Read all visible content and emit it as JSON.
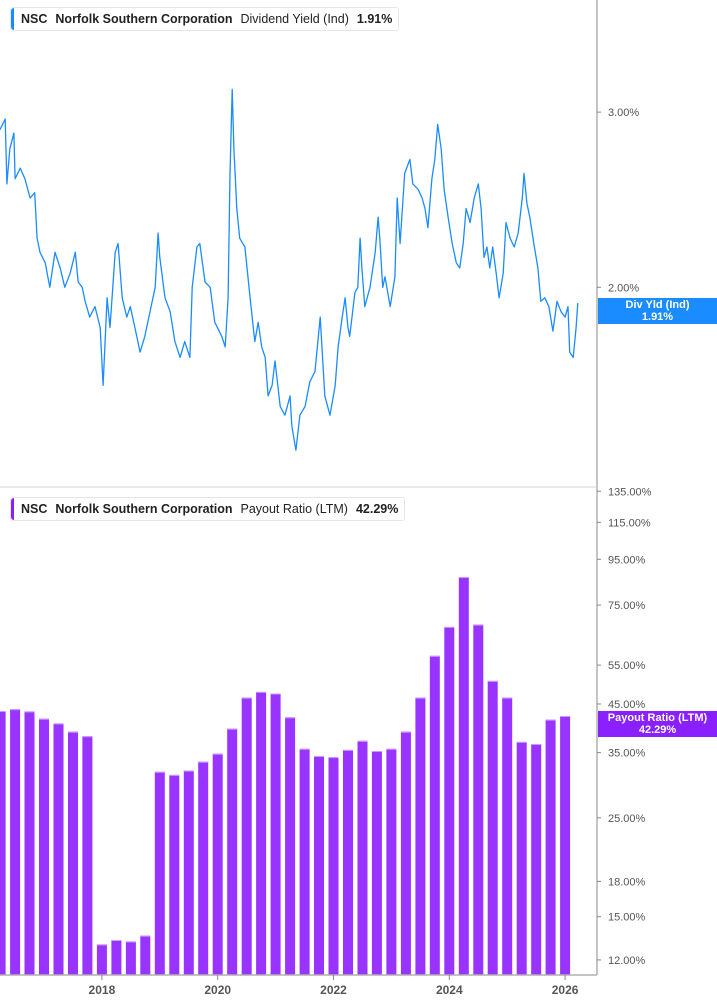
{
  "top_legend": {
    "ticker": "NSC",
    "company": "Norfolk Southern Corporation",
    "metric": "Dividend Yield (Ind)",
    "value": "1.91%"
  },
  "bottom_legend": {
    "ticker": "NSC",
    "company": "Norfolk Southern Corporation",
    "metric": "Payout Ratio (LTM)",
    "value": "42.29%"
  },
  "top_tag": {
    "label": "Div Yld (Ind)",
    "value": "1.91%"
  },
  "bottom_tag": {
    "label": "Payout Ratio (LTM)",
    "value": "42.29%"
  },
  "colors": {
    "yield_line": "#1a8cff",
    "payout_bar": "#9933ff",
    "payout_tag": "#8a1fff",
    "yield_tag": "#1a8cff",
    "axis": "#b0b0b0"
  },
  "chart_data": [
    {
      "type": "line",
      "series": [
        {
          "name": "Dividend Yield (Ind)",
          "x_unit": "year",
          "points": [
            [
              2016.24,
              2.9
            ],
            [
              2016.33,
              2.96
            ],
            [
              2016.36,
              2.59
            ],
            [
              2016.41,
              2.79
            ],
            [
              2016.48,
              2.88
            ],
            [
              2016.5,
              2.62
            ],
            [
              2016.59,
              2.68
            ],
            [
              2016.67,
              2.62
            ],
            [
              2016.76,
              2.51
            ],
            [
              2016.84,
              2.54
            ],
            [
              2016.88,
              2.28
            ],
            [
              2016.93,
              2.2
            ],
            [
              2017.02,
              2.14
            ],
            [
              2017.1,
              2.0
            ],
            [
              2017.19,
              2.2
            ],
            [
              2017.28,
              2.11
            ],
            [
              2017.36,
              2.0
            ],
            [
              2017.45,
              2.08
            ],
            [
              2017.54,
              2.2
            ],
            [
              2017.59,
              2.03
            ],
            [
              2017.66,
              2.0
            ],
            [
              2017.71,
              1.92
            ],
            [
              2017.79,
              1.83
            ],
            [
              2017.88,
              1.89
            ],
            [
              2017.97,
              1.77
            ],
            [
              2018.02,
              1.44
            ],
            [
              2018.09,
              1.94
            ],
            [
              2018.14,
              1.77
            ],
            [
              2018.23,
              2.2
            ],
            [
              2018.28,
              2.25
            ],
            [
              2018.35,
              1.94
            ],
            [
              2018.43,
              1.83
            ],
            [
              2018.49,
              1.89
            ],
            [
              2018.57,
              1.77
            ],
            [
              2018.66,
              1.63
            ],
            [
              2018.74,
              1.72
            ],
            [
              2018.83,
              1.86
            ],
            [
              2018.92,
              2.0
            ],
            [
              2018.97,
              2.31
            ],
            [
              2019.0,
              2.17
            ],
            [
              2019.09,
              1.94
            ],
            [
              2019.18,
              1.86
            ],
            [
              2019.26,
              1.69
            ],
            [
              2019.35,
              1.6
            ],
            [
              2019.43,
              1.69
            ],
            [
              2019.52,
              1.6
            ],
            [
              2019.56,
              2.0
            ],
            [
              2019.64,
              2.23
            ],
            [
              2019.69,
              2.25
            ],
            [
              2019.78,
              2.03
            ],
            [
              2019.87,
              2.0
            ],
            [
              2019.95,
              1.8
            ],
            [
              2020.07,
              1.72
            ],
            [
              2020.13,
              1.66
            ],
            [
              2020.18,
              1.94
            ],
            [
              2020.21,
              2.62
            ],
            [
              2020.25,
              3.13
            ],
            [
              2020.28,
              2.79
            ],
            [
              2020.33,
              2.45
            ],
            [
              2020.38,
              2.28
            ],
            [
              2020.47,
              2.23
            ],
            [
              2020.56,
              1.94
            ],
            [
              2020.64,
              1.69
            ],
            [
              2020.7,
              1.8
            ],
            [
              2020.76,
              1.66
            ],
            [
              2020.82,
              1.6
            ],
            [
              2020.87,
              1.38
            ],
            [
              2020.94,
              1.44
            ],
            [
              2020.99,
              1.58
            ],
            [
              2021.08,
              1.32
            ],
            [
              2021.16,
              1.27
            ],
            [
              2021.25,
              1.38
            ],
            [
              2021.28,
              1.21
            ],
            [
              2021.35,
              1.07
            ],
            [
              2021.42,
              1.27
            ],
            [
              2021.51,
              1.32
            ],
            [
              2021.59,
              1.46
            ],
            [
              2021.68,
              1.52
            ],
            [
              2021.77,
              1.83
            ],
            [
              2021.85,
              1.38
            ],
            [
              2021.94,
              1.27
            ],
            [
              2022.03,
              1.44
            ],
            [
              2022.08,
              1.66
            ],
            [
              2022.15,
              1.83
            ],
            [
              2022.2,
              1.94
            ],
            [
              2022.25,
              1.77
            ],
            [
              2022.28,
              1.72
            ],
            [
              2022.37,
              1.97
            ],
            [
              2022.42,
              2.0
            ],
            [
              2022.46,
              2.28
            ],
            [
              2022.49,
              2.11
            ],
            [
              2022.54,
              1.89
            ],
            [
              2022.63,
              2.0
            ],
            [
              2022.72,
              2.2
            ],
            [
              2022.77,
              2.4
            ],
            [
              2022.8,
              2.28
            ],
            [
              2022.85,
              2.0
            ],
            [
              2022.89,
              2.06
            ],
            [
              2022.98,
              1.89
            ],
            [
              2023.06,
              2.06
            ],
            [
              2023.1,
              2.51
            ],
            [
              2023.15,
              2.25
            ],
            [
              2023.23,
              2.65
            ],
            [
              2023.32,
              2.73
            ],
            [
              2023.37,
              2.59
            ],
            [
              2023.46,
              2.56
            ],
            [
              2023.53,
              2.51
            ],
            [
              2023.58,
              2.45
            ],
            [
              2023.63,
              2.34
            ],
            [
              2023.7,
              2.62
            ],
            [
              2023.75,
              2.73
            ],
            [
              2023.8,
              2.93
            ],
            [
              2023.86,
              2.79
            ],
            [
              2023.91,
              2.56
            ],
            [
              2023.98,
              2.4
            ],
            [
              2024.05,
              2.25
            ],
            [
              2024.12,
              2.14
            ],
            [
              2024.18,
              2.11
            ],
            [
              2024.24,
              2.25
            ],
            [
              2024.29,
              2.45
            ],
            [
              2024.36,
              2.37
            ],
            [
              2024.43,
              2.51
            ],
            [
              2024.5,
              2.59
            ],
            [
              2024.55,
              2.45
            ],
            [
              2024.6,
              2.17
            ],
            [
              2024.65,
              2.23
            ],
            [
              2024.7,
              2.11
            ],
            [
              2024.75,
              2.23
            ],
            [
              2024.81,
              2.08
            ],
            [
              2024.86,
              1.94
            ],
            [
              2024.93,
              2.08
            ],
            [
              2024.98,
              2.37
            ],
            [
              2025.05,
              2.28
            ],
            [
              2025.12,
              2.23
            ],
            [
              2025.19,
              2.31
            ],
            [
              2025.26,
              2.51
            ],
            [
              2025.29,
              2.65
            ],
            [
              2025.34,
              2.48
            ],
            [
              2025.39,
              2.4
            ],
            [
              2025.46,
              2.25
            ],
            [
              2025.53,
              2.11
            ],
            [
              2025.58,
              1.92
            ],
            [
              2025.65,
              1.94
            ],
            [
              2025.72,
              1.89
            ],
            [
              2025.79,
              1.75
            ],
            [
              2025.86,
              1.92
            ],
            [
              2025.93,
              1.86
            ],
            [
              2026.0,
              1.83
            ],
            [
              2026.05,
              1.89
            ],
            [
              2026.08,
              1.63
            ],
            [
              2026.14,
              1.6
            ],
            [
              2026.19,
              1.77
            ],
            [
              2026.22,
              1.91
            ]
          ]
        }
      ],
      "y_ticks": [
        "3.00%",
        "2.00%"
      ],
      "y_tick_values": [
        3.0,
        2.0
      ],
      "ylim": [
        0.9,
        3.64
      ],
      "xlim": [
        2016.24,
        2026.55
      ],
      "y_axis_side": "right",
      "grid": false
    },
    {
      "type": "bar",
      "y_scale": "log",
      "series": [
        {
          "name": "Payout Ratio (LTM)",
          "x_unit": "year",
          "points": [
            [
              2016.25,
              43.4
            ],
            [
              2016.5,
              43.8
            ],
            [
              2016.75,
              43.3
            ],
            [
              2017.0,
              41.7
            ],
            [
              2017.25,
              40.7
            ],
            [
              2017.5,
              39.0
            ],
            [
              2017.75,
              38.1
            ],
            [
              2018.0,
              13.0
            ],
            [
              2018.25,
              13.3
            ],
            [
              2018.5,
              13.2
            ],
            [
              2018.75,
              13.6
            ],
            [
              2019.0,
              31.7
            ],
            [
              2019.25,
              31.2
            ],
            [
              2019.5,
              31.9
            ],
            [
              2019.75,
              33.4
            ],
            [
              2020.0,
              34.8
            ],
            [
              2020.25,
              39.6
            ],
            [
              2020.5,
              46.5
            ],
            [
              2020.75,
              47.9
            ],
            [
              2021.0,
              47.5
            ],
            [
              2021.25,
              42.0
            ],
            [
              2021.5,
              35.7
            ],
            [
              2021.75,
              34.4
            ],
            [
              2022.0,
              34.2
            ],
            [
              2022.25,
              35.5
            ],
            [
              2022.5,
              37.2
            ],
            [
              2022.75,
              35.3
            ],
            [
              2023.0,
              35.7
            ],
            [
              2023.25,
              39.0
            ],
            [
              2023.5,
              46.5
            ],
            [
              2023.75,
              57.7
            ],
            [
              2024.0,
              67.0
            ],
            [
              2024.25,
              86.7
            ],
            [
              2024.5,
              67.8
            ],
            [
              2024.75,
              50.7
            ],
            [
              2025.0,
              46.5
            ],
            [
              2025.25,
              37.0
            ],
            [
              2025.5,
              36.6
            ],
            [
              2025.75,
              41.5
            ],
            [
              2026.0,
              42.29
            ]
          ]
        }
      ],
      "y_ticks": [
        "135.00%",
        "115.00%",
        "95.00%",
        "75.00%",
        "55.00%",
        "45.00%",
        "35.00%",
        "25.00%",
        "18.00%",
        "15.00%",
        "12.00%"
      ],
      "y_tick_values": [
        135,
        115,
        95,
        75,
        55,
        45,
        35,
        25,
        18,
        15,
        12
      ],
      "ylim": [
        11.1,
        138
      ],
      "x_ticks": [
        "2018",
        "2020",
        "2022",
        "2024",
        "2026"
      ],
      "x_tick_values": [
        2018,
        2020,
        2022,
        2024,
        2026
      ],
      "xlim": [
        2016.24,
        2026.55
      ],
      "y_axis_side": "right",
      "grid": false
    }
  ]
}
